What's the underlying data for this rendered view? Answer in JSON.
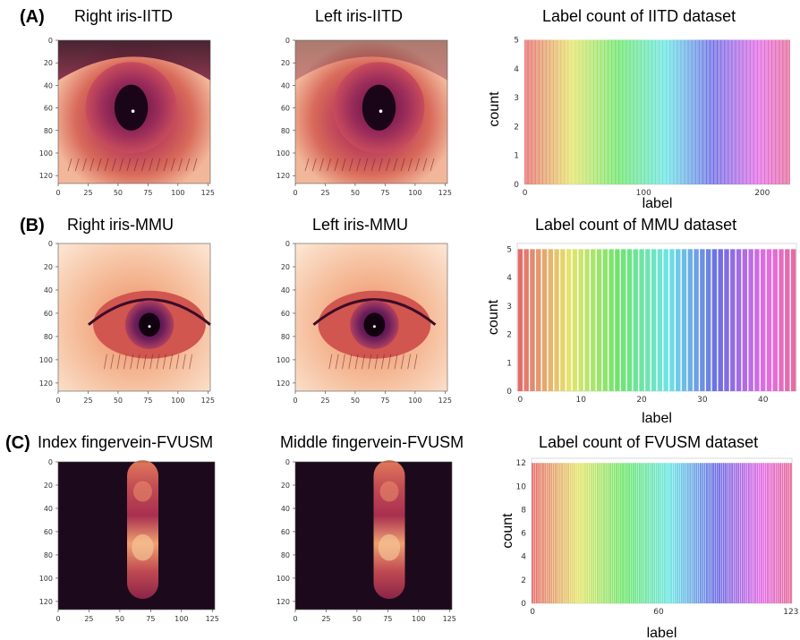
{
  "rows": [
    {
      "section": "(A)",
      "images": [
        {
          "title": "Right iris-IITD",
          "kind": "iris",
          "yticks": [
            "0",
            "20",
            "40",
            "60",
            "80",
            "100",
            "120"
          ],
          "xticks": [
            "0",
            "25",
            "50",
            "75",
            "100",
            "125"
          ]
        },
        {
          "title": "Left iris-IITD",
          "kind": "iris",
          "yticks": [
            "0",
            "20",
            "40",
            "60",
            "80",
            "100",
            "120"
          ],
          "xticks": [
            "0",
            "25",
            "50",
            "75",
            "100",
            "125"
          ]
        }
      ],
      "chart_title": "Label count of IITD dataset"
    },
    {
      "section": "(B)",
      "images": [
        {
          "title": "Right iris-MMU",
          "kind": "iris-light",
          "yticks": [
            "0",
            "20",
            "40",
            "60",
            "80",
            "100",
            "120"
          ],
          "xticks": [
            "0",
            "25",
            "50",
            "75",
            "100",
            "125"
          ]
        },
        {
          "title": "Left iris-MMU",
          "kind": "iris-light",
          "yticks": [
            "0",
            "20",
            "40",
            "60",
            "80",
            "100",
            "120"
          ],
          "xticks": [
            "0",
            "25",
            "50",
            "75",
            "100",
            "125"
          ]
        }
      ],
      "chart_title": "Label count of MMU dataset"
    },
    {
      "section": "(C)",
      "images": [
        {
          "title": "Index fingervein-FVUSM",
          "kind": "finger",
          "yticks": [
            "0",
            "20",
            "40",
            "60",
            "80",
            "100",
            "120"
          ],
          "xticks": [
            "0",
            "25",
            "50",
            "75",
            "100",
            "125"
          ]
        },
        {
          "title": "Middle fingervein-FVUSM",
          "kind": "finger",
          "yticks": [
            "0",
            "20",
            "40",
            "60",
            "80",
            "100",
            "120"
          ],
          "xticks": [
            "0",
            "25",
            "50",
            "75",
            "100",
            "125"
          ]
        }
      ],
      "chart_title": "Label count of FVUSM dataset"
    }
  ],
  "chart_data": [
    {
      "type": "bar",
      "title": "Label count of IITD dataset",
      "xlabel": "label",
      "ylabel": "count",
      "n_categories": 224,
      "value": 5,
      "xticks": [
        0,
        100,
        200
      ],
      "yticks": [
        0,
        1,
        2,
        3,
        4,
        5
      ],
      "ylim": [
        0,
        5.2
      ],
      "palette": "rainbow"
    },
    {
      "type": "bar",
      "title": "Label count of MMU dataset",
      "xlabel": "label",
      "ylabel": "count",
      "n_categories": 46,
      "value": 5,
      "xticks": [
        0,
        10,
        20,
        30,
        40
      ],
      "yticks": [
        0,
        1,
        2,
        3,
        4,
        5
      ],
      "ylim": [
        0,
        5.2
      ],
      "palette": "rainbow"
    },
    {
      "type": "bar",
      "title": "Label count of FVUSM dataset",
      "xlabel": "label",
      "ylabel": "count",
      "n_categories": 124,
      "value": 12,
      "xticks": [
        0,
        60,
        123
      ],
      "yticks": [
        0,
        2,
        4,
        6,
        8,
        10,
        12
      ],
      "ylim": [
        0,
        12.4
      ],
      "palette": "rainbow"
    }
  ]
}
